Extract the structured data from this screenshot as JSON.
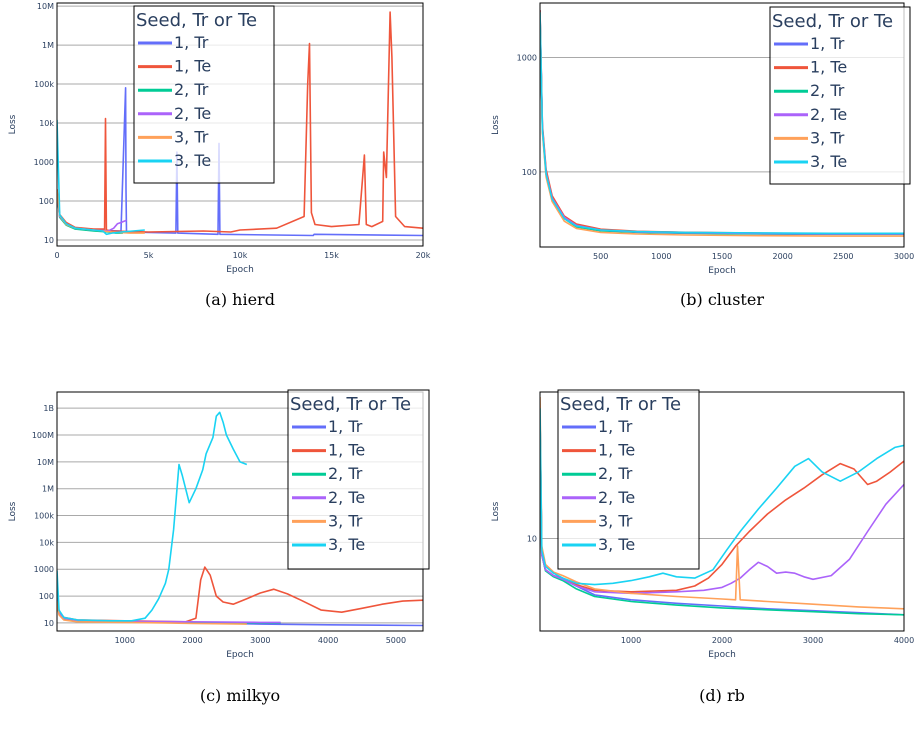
{
  "legend_title": "Seed, Tr or Te",
  "chart_data": [
    {
      "type": "line",
      "caption": "(a) hierd",
      "xlabel": "Epoch",
      "ylabel": "Loss",
      "yscale": "log",
      "xlim": [
        0,
        20000
      ],
      "ylim": [
        7,
        12000000
      ],
      "x_ticks": [
        {
          "v": 0,
          "t": "0"
        },
        {
          "v": 5000,
          "t": "5k"
        },
        {
          "v": 10000,
          "t": "10k"
        },
        {
          "v": 15000,
          "t": "15k"
        },
        {
          "v": 20000,
          "t": "20k"
        }
      ],
      "y_ticks": [
        {
          "v": 10,
          "t": "10"
        },
        {
          "v": 100,
          "t": "100"
        },
        {
          "v": 1000,
          "t": "1000"
        },
        {
          "v": 10000,
          "t": "10k"
        },
        {
          "v": 100000,
          "t": "100k"
        },
        {
          "v": 1000000,
          "t": "1M"
        },
        {
          "v": 10000000,
          "t": "10M"
        }
      ],
      "legend": {
        "position": "top-left"
      },
      "series": [
        {
          "name": "1, Tr",
          "color": "#636efa",
          "x": [
            0,
            150,
            500,
            1000,
            2000,
            3500,
            3750,
            3770,
            3800,
            6500,
            6550,
            6600,
            8800,
            8850,
            8900,
            14000,
            14050,
            20000
          ],
          "y": [
            180,
            40,
            25,
            20,
            18,
            17,
            80000,
            200,
            16,
            15,
            1800,
            15,
            14,
            3000,
            14,
            13,
            14,
            13
          ]
        },
        {
          "name": "1, Te",
          "color": "#ef553b",
          "x": [
            0,
            150,
            500,
            1000,
            2000,
            2600,
            2650,
            2700,
            3000,
            5000,
            8000,
            9500,
            10000,
            12000,
            13500,
            13700,
            13800,
            13900,
            14100,
            15000,
            16500,
            16800,
            16900,
            17200,
            17800,
            17850,
            18000,
            18200,
            18300,
            18500,
            19000,
            20000
          ],
          "y": [
            200,
            45,
            28,
            21,
            19,
            19,
            13000,
            18,
            17,
            16,
            17,
            16,
            18,
            20,
            40,
            100000,
            1100000,
            50,
            25,
            22,
            25,
            1500,
            25,
            22,
            30,
            1800,
            400,
            7000000,
            500000,
            40,
            22,
            20
          ]
        },
        {
          "name": "2, Tr",
          "color": "#00cc96",
          "x": [
            0,
            150,
            500,
            1000,
            2000,
            2800,
            3200,
            3600
          ],
          "y": [
            160,
            38,
            24,
            19,
            17,
            16,
            15,
            15
          ]
        },
        {
          "name": "2, Te",
          "color": "#ab63fa",
          "x": [
            0,
            150,
            500,
            1000,
            2000,
            2800,
            3100,
            3300,
            3500,
            3800
          ],
          "y": [
            170,
            40,
            26,
            20,
            18,
            17,
            20,
            26,
            28,
            32
          ]
        },
        {
          "name": "3, Tr",
          "color": "#ffa15a",
          "x": [
            0,
            150,
            500,
            1000,
            2000,
            3000,
            4000,
            4800
          ],
          "y": [
            190,
            42,
            25,
            20,
            18,
            16,
            15,
            15
          ]
        },
        {
          "name": "3, Te",
          "color": "#19d3f3",
          "x": [
            0,
            150,
            500,
            1000,
            2000,
            2500,
            2700,
            3000,
            3500,
            4800
          ],
          "y": [
            12000,
            44,
            26,
            20,
            18,
            17,
            14,
            15,
            16,
            18
          ]
        }
      ]
    },
    {
      "type": "line",
      "caption": "(b) cluster",
      "xlabel": "Epoch",
      "ylabel": "Loss",
      "yscale": "log",
      "xlim": [
        0,
        3000
      ],
      "ylim": [
        22,
        3000
      ],
      "x_ticks": [
        {
          "v": 500,
          "t": "500"
        },
        {
          "v": 1000,
          "t": "1000"
        },
        {
          "v": 1500,
          "t": "1500"
        },
        {
          "v": 2000,
          "t": "2000"
        },
        {
          "v": 2500,
          "t": "2500"
        },
        {
          "v": 3000,
          "t": "3000"
        }
      ],
      "y_ticks": [
        {
          "v": 100,
          "t": "100"
        },
        {
          "v": 1000,
          "t": "1000"
        }
      ],
      "legend": {
        "position": "top-right"
      },
      "series": [
        {
          "name": "1, Tr",
          "color": "#636efa",
          "x": [
            0,
            20,
            50,
            100,
            200,
            300,
            500,
            800,
            1200,
            1800,
            2400,
            3000
          ],
          "y": [
            2600,
            250,
            100,
            60,
            40,
            34,
            31,
            30,
            29.5,
            29,
            28.8,
            28.8
          ]
        },
        {
          "name": "1, Te",
          "color": "#ef553b",
          "x": [
            0,
            20,
            50,
            100,
            200,
            300,
            500,
            800,
            1200,
            1800,
            2400,
            3000
          ],
          "y": [
            2600,
            260,
            105,
            62,
            41,
            35,
            31.5,
            30.2,
            29.6,
            29.1,
            28.9,
            28.9
          ]
        },
        {
          "name": "2, Tr",
          "color": "#00cc96",
          "x": [
            0,
            20,
            50,
            100,
            200,
            300,
            500,
            800,
            1200,
            1800,
            2400,
            3000
          ],
          "y": [
            2400,
            230,
            95,
            58,
            39,
            33,
            30.5,
            29.5,
            29,
            28.6,
            28.4,
            28.4
          ]
        },
        {
          "name": "2, Te",
          "color": "#ab63fa",
          "x": [
            0,
            20,
            50,
            100,
            200,
            300,
            500,
            800,
            1200,
            1800,
            2400,
            3000
          ],
          "y": [
            2400,
            240,
            98,
            59,
            40,
            34,
            31,
            29.8,
            29.3,
            28.9,
            28.6,
            28.6
          ]
        },
        {
          "name": "3, Tr",
          "color": "#ffa15a",
          "x": [
            0,
            20,
            50,
            100,
            200,
            300,
            500,
            800,
            1200,
            1800,
            2400,
            3000
          ],
          "y": [
            2500,
            220,
            90,
            55,
            37,
            32,
            29.5,
            28.6,
            28,
            27.6,
            27.4,
            27.4
          ]
        },
        {
          "name": "3, Te",
          "color": "#19d3f3",
          "x": [
            0,
            20,
            50,
            100,
            200,
            300,
            500,
            800,
            1200,
            1800,
            2400,
            3000
          ],
          "y": [
            2500,
            235,
            96,
            58,
            39,
            33.5,
            31,
            30,
            29.5,
            29.2,
            29,
            29
          ]
        }
      ]
    },
    {
      "type": "line",
      "caption": "(c) milkyo",
      "xlabel": "Epoch",
      "ylabel": "Loss",
      "yscale": "log",
      "xlim": [
        0,
        5400
      ],
      "ylim": [
        5,
        4000000000
      ],
      "x_ticks": [
        {
          "v": 1000,
          "t": "1000"
        },
        {
          "v": 2000,
          "t": "2000"
        },
        {
          "v": 3000,
          "t": "3000"
        },
        {
          "v": 4000,
          "t": "4000"
        },
        {
          "v": 5000,
          "t": "5000"
        }
      ],
      "y_ticks": [
        {
          "v": 10,
          "t": "10"
        },
        {
          "v": 100,
          "t": "100"
        },
        {
          "v": 1000,
          "t": "1000"
        },
        {
          "v": 10000,
          "t": "10k"
        },
        {
          "v": 100000,
          "t": "100k"
        },
        {
          "v": 1000000,
          "t": "1M"
        },
        {
          "v": 10000000,
          "t": "10M"
        },
        {
          "v": 100000000,
          "t": "100M"
        },
        {
          "v": 1000000000,
          "t": "1B"
        }
      ],
      "legend": {
        "position": "top-right"
      },
      "series": [
        {
          "name": "1, Tr",
          "color": "#636efa",
          "x": [
            0,
            30,
            100,
            300,
            1000,
            2000,
            3000,
            4000,
            5400
          ],
          "y": [
            80,
            25,
            15,
            12,
            11,
            10,
            9,
            8.5,
            8
          ]
        },
        {
          "name": "1, Te",
          "color": "#ef553b",
          "x": [
            0,
            30,
            100,
            300,
            1000,
            1900,
            2050,
            2120,
            2180,
            2260,
            2350,
            2450,
            2600,
            2800,
            3000,
            3200,
            3400,
            3600,
            3900,
            4200,
            4500,
            4800,
            5100,
            5400
          ],
          "y": [
            90,
            28,
            16,
            13,
            12,
            11,
            15,
            400,
            1200,
            600,
            100,
            60,
            50,
            80,
            130,
            180,
            120,
            70,
            30,
            25,
            35,
            50,
            65,
            70
          ]
        },
        {
          "name": "2, Tr",
          "color": "#00cc96",
          "x": [
            0,
            30,
            100,
            300,
            1000,
            2000,
            3000,
            3300
          ],
          "y": [
            70,
            22,
            14,
            12,
            11,
            10.5,
            10,
            10
          ]
        },
        {
          "name": "2, Te",
          "color": "#ab63fa",
          "x": [
            0,
            30,
            100,
            300,
            1000,
            2000,
            3000,
            3300
          ],
          "y": [
            75,
            24,
            15,
            12.5,
            11.5,
            11,
            10.5,
            10.5
          ]
        },
        {
          "name": "3, Tr",
          "color": "#ffa15a",
          "x": [
            0,
            30,
            100,
            300,
            1000,
            1600,
            2000,
            2800
          ],
          "y": [
            65,
            20,
            13,
            11,
            10.5,
            10,
            9.5,
            9
          ]
        },
        {
          "name": "3, Te",
          "color": "#19d3f3",
          "x": [
            0,
            30,
            100,
            300,
            800,
            1100,
            1300,
            1400,
            1500,
            1600,
            1650,
            1720,
            1800,
            1850,
            1950,
            2050,
            2150,
            2200,
            2300,
            2350,
            2400,
            2450,
            2500,
            2600,
            2700,
            2800
          ],
          "y": [
            900,
            30,
            16,
            13,
            12,
            12,
            15,
            30,
            80,
            300,
            1000,
            30000,
            8000000,
            3000000,
            300000,
            1000000,
            5000000,
            20000000,
            80000000,
            500000000,
            700000000,
            300000000,
            100000000,
            30000000,
            10000000,
            8000000
          ]
        }
      ]
    },
    {
      "type": "line",
      "caption": "(d) rb",
      "xlabel": "Epoch",
      "ylabel": "Loss",
      "yscale": "log",
      "xlim": [
        0,
        4000
      ],
      "ylim": [
        2.8,
        75
      ],
      "x_ticks": [
        {
          "v": 1000,
          "t": "1000"
        },
        {
          "v": 2000,
          "t": "2000"
        },
        {
          "v": 3000,
          "t": "3000"
        },
        {
          "v": 4000,
          "t": "4000"
        }
      ],
      "y_ticks": [
        {
          "v": 10,
          "t": "10"
        }
      ],
      "legend": {
        "position": "top-left"
      },
      "series": [
        {
          "name": "1, Tr",
          "color": "#636efa",
          "x": [
            0,
            20,
            60,
            150,
            250,
            400,
            600,
            1000,
            1500,
            2000,
            2500,
            3000,
            3500,
            4000
          ],
          "y": [
            55,
            8,
            6.5,
            6,
            5.7,
            5.2,
            4.6,
            4.3,
            4.1,
            3.95,
            3.8,
            3.7,
            3.6,
            3.5
          ]
        },
        {
          "name": "1, Te",
          "color": "#ef553b",
          "x": [
            0,
            20,
            60,
            150,
            250,
            400,
            600,
            1000,
            1500,
            1700,
            1850,
            2000,
            2150,
            2300,
            2500,
            2700,
            2900,
            3100,
            3300,
            3450,
            3600,
            3700,
            3850,
            4000
          ],
          "y": [
            55,
            8,
            6.5,
            6,
            5.8,
            5.3,
            4.9,
            4.8,
            4.9,
            5.2,
            5.8,
            7,
            9,
            11,
            14,
            17,
            20,
            24,
            28,
            26,
            21,
            22,
            25,
            29
          ]
        },
        {
          "name": "2, Tr",
          "color": "#00cc96",
          "x": [
            0,
            20,
            60,
            150,
            250,
            400,
            600,
            1000,
            1500,
            2000,
            2500,
            3000,
            3500,
            4000
          ],
          "y": [
            55,
            8,
            6.4,
            5.9,
            5.6,
            5,
            4.5,
            4.2,
            4,
            3.85,
            3.75,
            3.65,
            3.55,
            3.5
          ]
        },
        {
          "name": "2, Te",
          "color": "#ab63fa",
          "x": [
            0,
            20,
            60,
            150,
            250,
            400,
            600,
            1000,
            1500,
            1800,
            2000,
            2100,
            2200,
            2300,
            2400,
            2500,
            2600,
            2700,
            2800,
            2900,
            3000,
            3200,
            3400,
            3600,
            3800,
            4000
          ],
          "y": [
            55,
            8,
            6.5,
            6,
            5.7,
            5.2,
            4.8,
            4.7,
            4.8,
            4.9,
            5.1,
            5.4,
            5.8,
            6.5,
            7.2,
            6.8,
            6.2,
            6.3,
            6.2,
            5.9,
            5.7,
            6,
            7.5,
            11,
            16,
            21
          ]
        },
        {
          "name": "3, Tr",
          "color": "#ffa15a",
          "x": [
            0,
            20,
            60,
            150,
            250,
            400,
            600,
            1000,
            1500,
            2000,
            2150,
            2170,
            2200,
            2500,
            3000,
            3500,
            4000
          ],
          "y": [
            70,
            9,
            7,
            6.3,
            6,
            5.5,
            5,
            4.7,
            4.5,
            4.35,
            4.3,
            9,
            4.3,
            4.2,
            4.05,
            3.9,
            3.8
          ]
        },
        {
          "name": "3, Te",
          "color": "#19d3f3",
          "x": [
            0,
            20,
            60,
            150,
            250,
            400,
            600,
            800,
            1000,
            1200,
            1350,
            1500,
            1700,
            1900,
            2050,
            2200,
            2400,
            2600,
            2800,
            2950,
            3100,
            3300,
            3500,
            3700,
            3900,
            4000
          ],
          "y": [
            60,
            8.5,
            6.8,
            6.2,
            5.8,
            5.4,
            5.3,
            5.4,
            5.6,
            5.9,
            6.2,
            5.9,
            5.8,
            6.5,
            8.5,
            11,
            15,
            20,
            27,
            30,
            25,
            22,
            25,
            30,
            35,
            36
          ]
        }
      ]
    }
  ]
}
